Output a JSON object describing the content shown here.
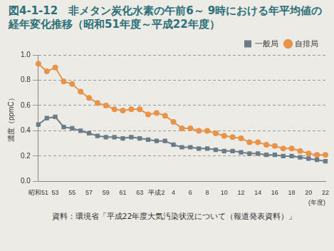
{
  "chart_data": {
    "type": "line",
    "title": "図4-1-12　非メタン炭化水素の午前6～ 9時における年平均値の経年変化推移（昭和51年度～平成22年度）",
    "note": "資料：環境省「平成22年度大気汚染状況について（報道発表資料）」",
    "x_label": "(年度)",
    "y_label": "濃度（ppmC）",
    "categories": [
      "昭和51",
      null,
      "53",
      null,
      "55",
      null,
      "57",
      null,
      "59",
      null,
      "61",
      null,
      "63",
      null,
      "平成2",
      null,
      "4",
      null,
      "6",
      null,
      "8",
      null,
      "10",
      null,
      "12",
      null,
      "14",
      null,
      "16",
      null,
      "18",
      null,
      "20",
      null,
      "22"
    ],
    "series": [
      {
        "name": "一般局",
        "color": "#6b7c88",
        "marker": "square",
        "line_style": "solid",
        "values": [
          0.45,
          0.5,
          0.51,
          0.43,
          0.42,
          0.4,
          0.38,
          0.36,
          0.35,
          0.35,
          0.34,
          0.35,
          0.34,
          0.33,
          0.32,
          0.32,
          0.29,
          0.27,
          0.27,
          0.26,
          0.26,
          0.25,
          0.24,
          0.24,
          0.23,
          0.22,
          0.22,
          0.21,
          0.21,
          0.2,
          0.2,
          0.19,
          0.18,
          0.17,
          0.16
        ]
      },
      {
        "name": "自排局",
        "color": "#e8934a",
        "marker": "circle",
        "line_style": "solid",
        "values": [
          0.93,
          0.87,
          0.9,
          0.79,
          0.77,
          0.71,
          0.66,
          0.62,
          0.6,
          0.57,
          0.56,
          0.57,
          0.57,
          0.53,
          0.54,
          0.52,
          0.47,
          0.42,
          0.42,
          0.4,
          0.4,
          0.38,
          0.36,
          0.35,
          0.34,
          0.31,
          0.31,
          0.29,
          0.28,
          0.26,
          0.26,
          0.24,
          0.22,
          0.21,
          0.21
        ]
      }
    ],
    "ylim": [
      0,
      1
    ],
    "yticks": [
      {
        "value": 0,
        "label": "0.0"
      },
      {
        "value": 0.2,
        "label": "0.2"
      },
      {
        "value": 0.4,
        "label": "0.4"
      },
      {
        "value": 0.6,
        "label": "0.6"
      },
      {
        "value": 0.8,
        "label": "0.8"
      },
      {
        "value": 1,
        "label": "1.0"
      }
    ],
    "grid": true,
    "legend": "top-right"
  }
}
